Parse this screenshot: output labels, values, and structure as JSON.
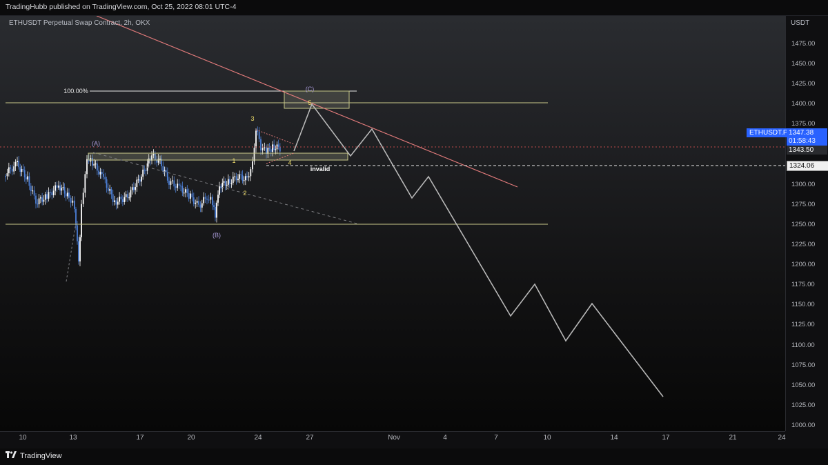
{
  "header": {
    "publish_line": "TradingHubb published on TradingView.com, Oct 25, 2022 08:01 UTC-4"
  },
  "chart": {
    "symbol_line": "ETHUSDT Perpetual Swap Contract, 2h, OKX",
    "currency": "USDT",
    "symbol_badge": "ETHUSDT.P",
    "price_badge": "1347.38",
    "countdown_badge": "01:58:43",
    "level_badge": "1343.50",
    "invalid_badge": "1324.06",
    "y_ticks": [
      "1475.00",
      "1450.00",
      "1425.00",
      "1400.00",
      "1375.00",
      "1350.00",
      "1325.00",
      "1300.00",
      "1275.00",
      "1250.00",
      "1225.00",
      "1200.00",
      "1175.00",
      "1150.00",
      "1125.00",
      "1100.00",
      "1075.00",
      "1050.00",
      "1025.00",
      "1000.00"
    ],
    "x_ticks": [
      "10",
      "13",
      "17",
      "20",
      "24",
      "27",
      "Nov",
      "4",
      "7",
      "10",
      "14",
      "17",
      "21",
      "24"
    ],
    "annotations": {
      "fib": "100.00%",
      "wave_A": "(A)",
      "wave_B": "(B)",
      "wave_C": "(C)",
      "w1": "1",
      "w2": "2",
      "w3": "3",
      "w4": "4",
      "w5": "5",
      "invalid": "invalid"
    },
    "colors": {
      "accent": "#2962ff",
      "level_line": "#c9c98a",
      "trendline": "#e07a7a",
      "candle_up": "#ffffff",
      "candle_down": "#4c7fd6",
      "projection": "#b8b8b8",
      "wave_label_yellow": "#f2e06b",
      "wave_label_purple": "#a89ad8"
    }
  },
  "footer": {
    "logo_icon": "tradingview-logo-icon",
    "brand": "TradingView"
  }
}
